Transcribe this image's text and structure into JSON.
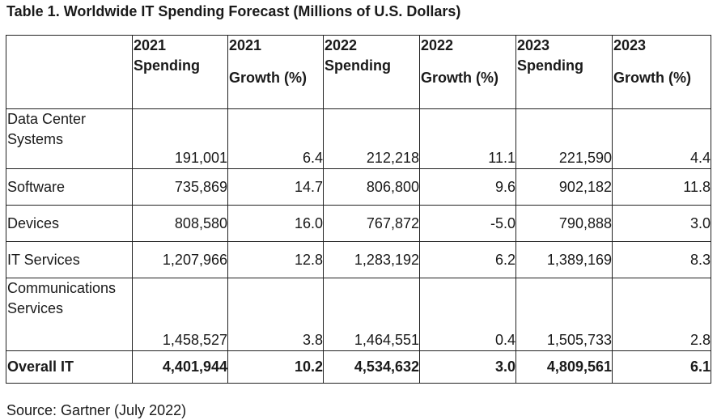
{
  "title": "Table 1. Worldwide IT Spending Forecast (Millions of U.S. Dollars)",
  "headers": {
    "col1": {
      "line1": "2021",
      "line2": "Spending"
    },
    "col2": {
      "line1": "2021",
      "line2": "Growth (%)"
    },
    "col3": {
      "line1": "2022",
      "line2": "Spending"
    },
    "col4": {
      "line1": "2022",
      "line2": "Growth (%)"
    },
    "col5": {
      "line1": "2023",
      "line2": "Spending"
    },
    "col6": {
      "line1": "2023",
      "line2": "Growth (%)"
    }
  },
  "rows": [
    {
      "label": "Data Center Systems",
      "values": [
        "191,001",
        "6.4",
        "212,218",
        "11.1",
        "221,590",
        "4.4"
      ]
    },
    {
      "label": "Software",
      "values": [
        "735,869",
        "14.7",
        "806,800",
        "9.6",
        "902,182",
        "11.8"
      ]
    },
    {
      "label": "Devices",
      "values": [
        "808,580",
        "16.0",
        "767,872",
        "-5.0",
        "790,888",
        "3.0"
      ]
    },
    {
      "label": "IT Services",
      "values": [
        "1,207,966",
        "12.8",
        "1,283,192",
        "6.2",
        "1,389,169",
        "8.3"
      ]
    },
    {
      "label": "Communications Services",
      "values": [
        "1,458,527",
        "3.8",
        "1,464,551",
        "0.4",
        "1,505,733",
        "2.8"
      ]
    },
    {
      "label": "Overall IT",
      "values": [
        "4,401,944",
        "10.2",
        "4,534,632",
        "3.0",
        "4,809,561",
        "6.1"
      ]
    }
  ],
  "source": "Source: Gartner (July 2022)"
}
